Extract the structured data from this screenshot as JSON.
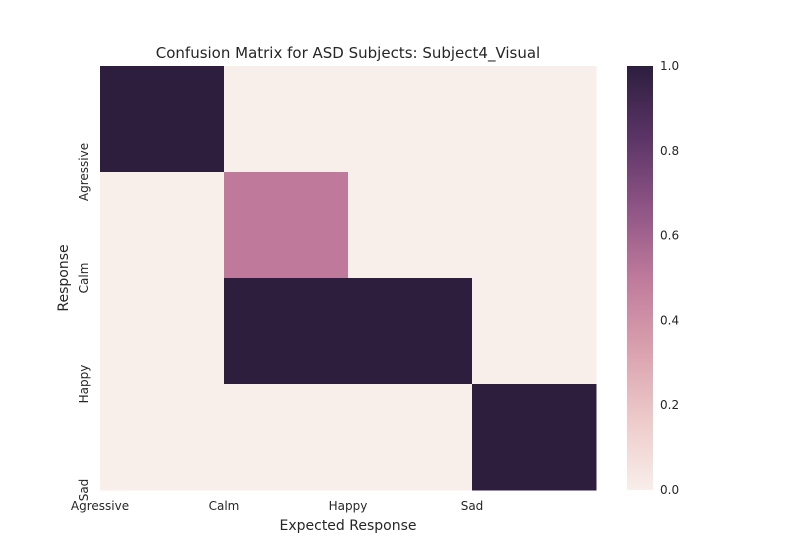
{
  "chart_data": {
    "type": "heatmap",
    "title": "Confusion Matrix for ASD Subjects: Subject4_Visual",
    "xlabel": "Expected Response",
    "ylabel": "Response",
    "x_tick_labels": [
      "Agressive",
      "Calm",
      "Happy",
      "Sad"
    ],
    "y_tick_labels": [
      "Agressive",
      "Calm",
      "Happy",
      "Sad"
    ],
    "rows": 4,
    "cols": 4,
    "values": [
      [
        1.0,
        0.0,
        0.0,
        0.0
      ],
      [
        0.0,
        0.5,
        0.0,
        0.0
      ],
      [
        0.0,
        1.0,
        1.0,
        0.0
      ],
      [
        0.0,
        0.0,
        0.0,
        1.0
      ]
    ],
    "colorbar": {
      "range": [
        0.0,
        1.0
      ],
      "ticks": [
        "0.0",
        "0.2",
        "0.4",
        "0.6",
        "0.8",
        "1.0"
      ],
      "colormap": [
        "#f8eeea",
        "#edcaca",
        "#d9a0ad",
        "#bf7a9b",
        "#8e5485",
        "#5a3466",
        "#2d1e3e"
      ]
    },
    "grid": false
  }
}
